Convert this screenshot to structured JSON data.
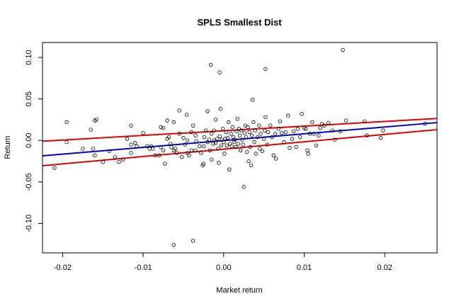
{
  "chart_data": {
    "type": "scatter",
    "title": "SPLS Smallest Dist",
    "xlabel": "Market return",
    "ylabel": "Return",
    "xlim": [
      -0.0225,
      0.0265
    ],
    "ylim": [
      -0.1355,
      0.118
    ],
    "x_ticks": [
      {
        "value": -0.02,
        "label": "-0.02"
      },
      {
        "value": -0.01,
        "label": "-0.01"
      },
      {
        "value": 0.0,
        "label": "0.00"
      },
      {
        "value": 0.01,
        "label": "0.01"
      },
      {
        "value": 0.02,
        "label": "0.02"
      }
    ],
    "y_ticks": [
      {
        "value": -0.1,
        "label": "-0.10"
      },
      {
        "value": -0.05,
        "label": "-0.05"
      },
      {
        "value": 0.0,
        "label": "0.00"
      },
      {
        "value": 0.05,
        "label": "0.05"
      },
      {
        "value": 0.1,
        "label": "0.10"
      }
    ],
    "grid": false,
    "points": [
      {
        "x": -0.021,
        "y": -0.033
      },
      {
        "x": -0.0195,
        "y": 0.022
      },
      {
        "x": -0.0195,
        "y": -0.002
      },
      {
        "x": -0.0175,
        "y": -0.01
      },
      {
        "x": -0.0165,
        "y": 0.013
      },
      {
        "x": -0.016,
        "y": 0.024
      },
      {
        "x": -0.0158,
        "y": 0.025
      },
      {
        "x": -0.0162,
        "y": -0.01
      },
      {
        "x": -0.016,
        "y": -0.018
      },
      {
        "x": -0.015,
        "y": -0.026
      },
      {
        "x": -0.0142,
        "y": -0.013
      },
      {
        "x": -0.0135,
        "y": -0.02
      },
      {
        "x": -0.0125,
        "y": -0.023
      },
      {
        "x": -0.013,
        "y": -0.026
      },
      {
        "x": -0.012,
        "y": 0.002
      },
      {
        "x": -0.0115,
        "y": -0.005
      },
      {
        "x": -0.011,
        "y": -0.003
      },
      {
        "x": -0.0115,
        "y": 0.018
      },
      {
        "x": -0.0115,
        "y": -0.015
      },
      {
        "x": -0.01,
        "y": 0.009
      },
      {
        "x": -0.0108,
        "y": -0.007
      },
      {
        "x": -0.0095,
        "y": -0.007
      },
      {
        "x": -0.0092,
        "y": -0.01
      },
      {
        "x": -0.009,
        "y": -0.007
      },
      {
        "x": -0.0088,
        "y": -0.01
      },
      {
        "x": -0.0085,
        "y": -0.018
      },
      {
        "x": -0.008,
        "y": -0.018
      },
      {
        "x": -0.0078,
        "y": -0.008
      },
      {
        "x": -0.0075,
        "y": -0.012
      },
      {
        "x": -0.0075,
        "y": 0.015
      },
      {
        "x": -0.0078,
        "y": 0.016
      },
      {
        "x": -0.0073,
        "y": -0.028
      },
      {
        "x": -0.007,
        "y": 0.024
      },
      {
        "x": -0.007,
        "y": 0.002
      },
      {
        "x": -0.0068,
        "y": 0.004
      },
      {
        "x": -0.0066,
        "y": -0.004
      },
      {
        "x": -0.0065,
        "y": -0.008
      },
      {
        "x": -0.0062,
        "y": -0.012
      },
      {
        "x": -0.0062,
        "y": 0.022
      },
      {
        "x": -0.006,
        "y": -0.01
      },
      {
        "x": -0.0058,
        "y": -0.015
      },
      {
        "x": -0.0055,
        "y": 0.008
      },
      {
        "x": -0.0055,
        "y": 0.036
      },
      {
        "x": -0.0052,
        "y": -0.02
      },
      {
        "x": -0.005,
        "y": 0.003
      },
      {
        "x": -0.0048,
        "y": -0.005
      },
      {
        "x": -0.0046,
        "y": 0.031
      },
      {
        "x": -0.0045,
        "y": -0.015
      },
      {
        "x": -0.0045,
        "y": 0.0
      },
      {
        "x": -0.0043,
        "y": -0.018
      },
      {
        "x": -0.004,
        "y": -0.012
      },
      {
        "x": -0.004,
        "y": 0.01
      },
      {
        "x": -0.0038,
        "y": 0.018
      },
      {
        "x": -0.0035,
        "y": -0.012
      },
      {
        "x": -0.0035,
        "y": 0.006
      },
      {
        "x": -0.0034,
        "y": -0.001
      },
      {
        "x": -0.003,
        "y": -0.007
      },
      {
        "x": -0.0028,
        "y": -0.015
      },
      {
        "x": -0.0026,
        "y": -0.03
      },
      {
        "x": -0.0025,
        "y": -0.028
      },
      {
        "x": -0.0025,
        "y": -0.007
      },
      {
        "x": -0.0024,
        "y": 0.004
      },
      {
        "x": -0.0022,
        "y": 0.012
      },
      {
        "x": -0.002,
        "y": 0.035
      },
      {
        "x": -0.002,
        "y": -0.002
      },
      {
        "x": -0.0018,
        "y": 0.001
      },
      {
        "x": -0.0017,
        "y": -0.012
      },
      {
        "x": -0.0016,
        "y": 0.091
      },
      {
        "x": -0.0015,
        "y": -0.023
      },
      {
        "x": -0.0015,
        "y": 0.008
      },
      {
        "x": -0.0013,
        "y": -0.004
      },
      {
        "x": -0.0012,
        "y": 0.012
      },
      {
        "x": -0.0012,
        "y": 0.0
      },
      {
        "x": -0.001,
        "y": -0.003
      },
      {
        "x": -0.001,
        "y": 0.025
      },
      {
        "x": -0.0008,
        "y": 0.002
      },
      {
        "x": -0.0007,
        "y": -0.01
      },
      {
        "x": -0.0006,
        "y": -0.027
      },
      {
        "x": -0.0005,
        "y": 0.082
      },
      {
        "x": -0.0005,
        "y": 0.005
      },
      {
        "x": -0.0004,
        "y": 0.038
      },
      {
        "x": -0.0003,
        "y": -0.006
      },
      {
        "x": -0.0002,
        "y": 0.001
      },
      {
        "x": -0.0001,
        "y": 0.014
      },
      {
        "x": 0.0,
        "y": -0.002
      },
      {
        "x": 0.0001,
        "y": -0.016
      },
      {
        "x": 0.0002,
        "y": 0.002
      },
      {
        "x": 0.0003,
        "y": 0.01
      },
      {
        "x": 0.0004,
        "y": -0.006
      },
      {
        "x": 0.0005,
        "y": 0.003
      },
      {
        "x": 0.0006,
        "y": 0.022
      },
      {
        "x": 0.0007,
        "y": -0.035
      },
      {
        "x": 0.0008,
        "y": -0.004
      },
      {
        "x": 0.0009,
        "y": 0.008
      },
      {
        "x": 0.001,
        "y": -0.007
      },
      {
        "x": 0.0011,
        "y": 0.016
      },
      {
        "x": 0.0012,
        "y": 0.004
      },
      {
        "x": 0.0013,
        "y": -0.002
      },
      {
        "x": 0.0014,
        "y": 0.001
      },
      {
        "x": 0.0015,
        "y": -0.008
      },
      {
        "x": 0.0016,
        "y": 0.011
      },
      {
        "x": 0.0017,
        "y": 0.026
      },
      {
        "x": 0.0018,
        "y": -0.004
      },
      {
        "x": 0.0019,
        "y": 0.014
      },
      {
        "x": 0.002,
        "y": 0.006
      },
      {
        "x": 0.0021,
        "y": -0.012
      },
      {
        "x": 0.0022,
        "y": 0.012
      },
      {
        "x": 0.0023,
        "y": 0.001
      },
      {
        "x": 0.0024,
        "y": -0.005
      },
      {
        "x": 0.0025,
        "y": -0.056
      },
      {
        "x": 0.0026,
        "y": 0.009
      },
      {
        "x": 0.0027,
        "y": 0.018
      },
      {
        "x": 0.0028,
        "y": 0.004
      },
      {
        "x": 0.0029,
        "y": -0.014
      },
      {
        "x": 0.003,
        "y": 0.016
      },
      {
        "x": 0.0031,
        "y": -0.025
      },
      {
        "x": 0.0032,
        "y": 0.01
      },
      {
        "x": 0.0033,
        "y": -0.008
      },
      {
        "x": 0.0034,
        "y": -0.03
      },
      {
        "x": 0.0035,
        "y": 0.006
      },
      {
        "x": 0.0036,
        "y": 0.049
      },
      {
        "x": 0.0037,
        "y": 0.022
      },
      {
        "x": 0.0038,
        "y": -0.002
      },
      {
        "x": 0.0039,
        "y": 0.012
      },
      {
        "x": 0.004,
        "y": -0.016
      },
      {
        "x": 0.0042,
        "y": 0.004
      },
      {
        "x": 0.0044,
        "y": 0.018
      },
      {
        "x": 0.0045,
        "y": -0.01
      },
      {
        "x": 0.0046,
        "y": 0.008
      },
      {
        "x": 0.0048,
        "y": -0.013
      },
      {
        "x": 0.005,
        "y": 0.002
      },
      {
        "x": 0.0051,
        "y": 0.012
      },
      {
        "x": 0.0052,
        "y": 0.028
      },
      {
        "x": 0.0052,
        "y": 0.086
      },
      {
        "x": 0.0054,
        "y": -0.005
      },
      {
        "x": 0.0055,
        "y": 0.01
      },
      {
        "x": 0.0058,
        "y": 0.018
      },
      {
        "x": 0.006,
        "y": 0.004
      },
      {
        "x": 0.0062,
        "y": -0.018
      },
      {
        "x": 0.0064,
        "y": 0.008
      },
      {
        "x": 0.0065,
        "y": -0.022
      },
      {
        "x": 0.0068,
        "y": 0.014
      },
      {
        "x": 0.007,
        "y": 0.023
      },
      {
        "x": 0.0072,
        "y": 0.009
      },
      {
        "x": 0.0075,
        "y": -0.002
      },
      {
        "x": 0.0077,
        "y": 0.01
      },
      {
        "x": 0.008,
        "y": 0.03
      },
      {
        "x": 0.0082,
        "y": -0.009
      },
      {
        "x": 0.0085,
        "y": 0.002
      },
      {
        "x": 0.0087,
        "y": 0.011
      },
      {
        "x": 0.009,
        "y": -0.008
      },
      {
        "x": 0.0092,
        "y": 0.014
      },
      {
        "x": 0.0095,
        "y": 0.004
      },
      {
        "x": 0.0097,
        "y": 0.032
      },
      {
        "x": 0.01,
        "y": 0.015
      },
      {
        "x": 0.0102,
        "y": 0.014
      },
      {
        "x": 0.0104,
        "y": -0.012
      },
      {
        "x": 0.0105,
        "y": -0.016
      },
      {
        "x": 0.0107,
        "y": 0.008
      },
      {
        "x": 0.011,
        "y": 0.022
      },
      {
        "x": 0.0112,
        "y": 0.008
      },
      {
        "x": 0.0115,
        "y": -0.006
      },
      {
        "x": 0.0118,
        "y": 0.006
      },
      {
        "x": 0.012,
        "y": 0.015
      },
      {
        "x": 0.0122,
        "y": 0.02
      },
      {
        "x": 0.0125,
        "y": 0.018
      },
      {
        "x": 0.013,
        "y": 0.021
      },
      {
        "x": 0.0135,
        "y": 0.012
      },
      {
        "x": 0.0138,
        "y": 0.001
      },
      {
        "x": 0.0145,
        "y": 0.011
      },
      {
        "x": 0.0148,
        "y": 0.109
      },
      {
        "x": 0.0152,
        "y": 0.024
      },
      {
        "x": 0.0175,
        "y": 0.023
      },
      {
        "x": 0.0178,
        "y": 0.006
      },
      {
        "x": 0.0195,
        "y": 0.003
      },
      {
        "x": 0.0198,
        "y": 0.012
      },
      {
        "x": 0.025,
        "y": 0.02
      },
      {
        "x": -0.0062,
        "y": -0.126
      },
      {
        "x": -0.0038,
        "y": -0.121
      }
    ],
    "lines": [
      {
        "role": "fit",
        "color": "#0000cc",
        "x": [
          -0.0225,
          0.0265
        ],
        "y": [
          -0.0186,
          0.0215
        ]
      },
      {
        "role": "upper-band",
        "color": "#e00000",
        "x": [
          -0.0225,
          0.0265
        ],
        "y": [
          -0.001,
          0.0265
        ]
      },
      {
        "role": "lower-band",
        "color": "#e00000",
        "x": [
          -0.0225,
          0.0265
        ],
        "y": [
          -0.0305,
          0.013
        ]
      }
    ]
  }
}
